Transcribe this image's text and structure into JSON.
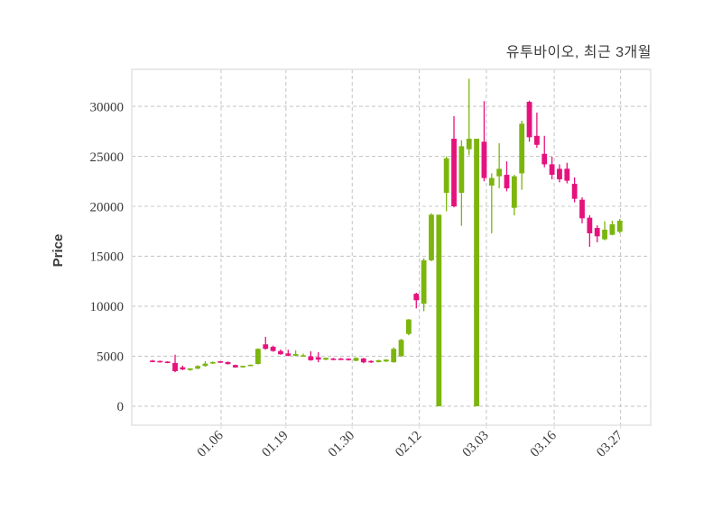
{
  "window": {
    "background": "#ffffff"
  },
  "chart_data": {
    "type": "candlestick",
    "title": "유투바이오, 최근 3개월",
    "ylabel": "Price",
    "xlabel": "",
    "legend": "none",
    "grid": true,
    "y_ticks": [
      0,
      5000,
      10000,
      15000,
      20000,
      25000,
      30000
    ],
    "y_tick_labels": [
      "0",
      "5000",
      "10000",
      "15000",
      "20000",
      "25000",
      "30000"
    ],
    "y_range": [
      -1900,
      33700
    ],
    "x_tick_labels": [
      "01.06",
      "01.19",
      "01.30",
      "02.12",
      "03.03",
      "03.16",
      "03.27"
    ],
    "x_tick_positions": [
      9.1,
      17.7,
      26.5,
      35.4,
      44.3,
      53.3,
      62.1
    ],
    "x_range": [
      -2.75,
      66.1
    ],
    "colors": {
      "up": "#7cb50e",
      "down": "#e5127d",
      "grid": "#c9c9c9",
      "frame": "#e2e2e2",
      "text": "#3a3a3a"
    },
    "ohlc_order": [
      "open",
      "high",
      "low",
      "close"
    ],
    "candles": [
      [
        4560,
        4640,
        4400,
        4420
      ],
      [
        4500,
        4560,
        4380,
        4410
      ],
      [
        4450,
        4500,
        4300,
        4330
      ],
      [
        4330,
        5160,
        3400,
        3510
      ],
      [
        3900,
        4060,
        3600,
        3680
      ],
      [
        3620,
        3800,
        3550,
        3780
      ],
      [
        3760,
        4100,
        3700,
        4020
      ],
      [
        4030,
        4510,
        3950,
        4260
      ],
      [
        4300,
        4480,
        4230,
        4380
      ],
      [
        4450,
        4510,
        4330,
        4400
      ],
      [
        4420,
        4470,
        4180,
        4210
      ],
      [
        4120,
        4160,
        3850,
        3880
      ],
      [
        3900,
        4060,
        3850,
        4030
      ],
      [
        4050,
        4160,
        4000,
        4110
      ],
      [
        4230,
        5790,
        4180,
        5740
      ],
      [
        6190,
        6940,
        5650,
        5740
      ],
      [
        5950,
        6060,
        5450,
        5520
      ],
      [
        5520,
        5680,
        5150,
        5200
      ],
      [
        5280,
        5640,
        5000,
        5050
      ],
      [
        5050,
        5590,
        5000,
        5220
      ],
      [
        4990,
        5260,
        4940,
        5060
      ],
      [
        4990,
        5500,
        4550,
        4600
      ],
      [
        4900,
        5400,
        4400,
        4660
      ],
      [
        4660,
        4880,
        4600,
        4840
      ],
      [
        4750,
        4830,
        4600,
        4650
      ],
      [
        4740,
        4830,
        4620,
        4660
      ],
      [
        4730,
        4800,
        4570,
        4630
      ],
      [
        4540,
        4870,
        4500,
        4840
      ],
      [
        4780,
        4830,
        4300,
        4390
      ],
      [
        4530,
        4580,
        4330,
        4380
      ],
      [
        4410,
        4650,
        4380,
        4600
      ],
      [
        4480,
        4700,
        4420,
        4660
      ],
      [
        4400,
        5900,
        4350,
        5740
      ],
      [
        5000,
        6750,
        4950,
        6640
      ],
      [
        7230,
        8720,
        7100,
        8680
      ],
      [
        11250,
        11350,
        9790,
        10600
      ],
      [
        10250,
        14800,
        9500,
        14600
      ],
      [
        14600,
        19300,
        14500,
        19160
      ],
      [
        0,
        19160,
        0,
        19160
      ],
      [
        21350,
        25000,
        19500,
        24800
      ],
      [
        26760,
        29010,
        19900,
        20000
      ],
      [
        21350,
        26610,
        18050,
        26010
      ],
      [
        25710,
        32760,
        25110,
        26760
      ],
      [
        0,
        26760,
        0,
        26760
      ],
      [
        26460,
        30520,
        22500,
        22830
      ],
      [
        22070,
        23300,
        17300,
        22830
      ],
      [
        23000,
        26310,
        21800,
        23750
      ],
      [
        23150,
        24500,
        21500,
        21800
      ],
      [
        19850,
        23150,
        19100,
        23000
      ],
      [
        23300,
        28560,
        21650,
        28260
      ],
      [
        30450,
        30570,
        26460,
        26910
      ],
      [
        27050,
        29370,
        25850,
        26150
      ],
      [
        25250,
        27050,
        23900,
        24200
      ],
      [
        24200,
        24950,
        22700,
        23150
      ],
      [
        23750,
        24200,
        22400,
        22700
      ],
      [
        23760,
        24350,
        22300,
        22560
      ],
      [
        22250,
        22900,
        20400,
        20750
      ],
      [
        20660,
        20900,
        18300,
        18800
      ],
      [
        18860,
        19100,
        15950,
        17300
      ],
      [
        17840,
        18100,
        16400,
        17000
      ],
      [
        16700,
        18500,
        16600,
        17660
      ],
      [
        17150,
        18560,
        17100,
        18200
      ],
      [
        17450,
        18740,
        17300,
        18560
      ]
    ]
  }
}
